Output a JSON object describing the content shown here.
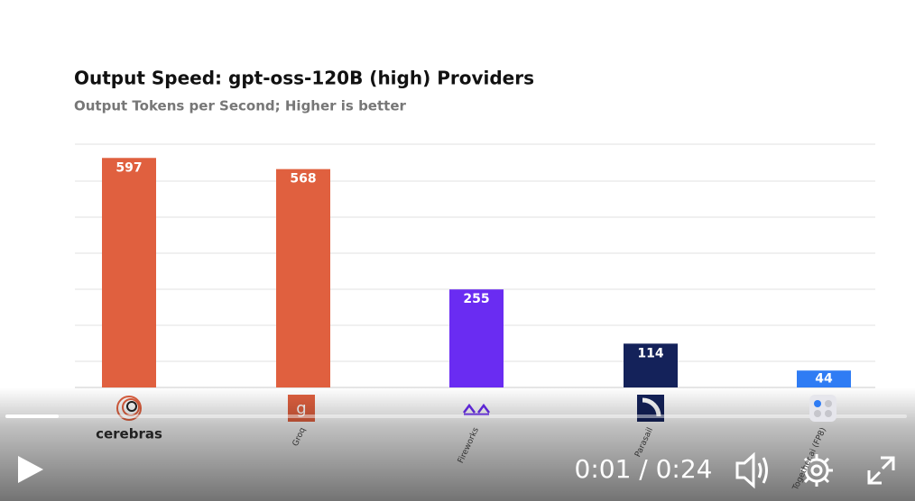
{
  "chart_data": {
    "type": "bar",
    "title": "Output Speed: gpt-oss-120B (high) Providers",
    "subtitle": "Output Tokens per Second; Higher is better",
    "categories": [
      "cerebras",
      "Groq",
      "Fireworks",
      "Parasail",
      "Together.ai (FP8)"
    ],
    "values": [
      597,
      568,
      255,
      114,
      44
    ],
    "colors": [
      "#e0603f",
      "#e0603f",
      "#6a2cf2",
      "#14225a",
      "#2f7cf4"
    ],
    "ylim": [
      0,
      600
    ]
  },
  "player": {
    "time": "0:01 / 0:24"
  }
}
